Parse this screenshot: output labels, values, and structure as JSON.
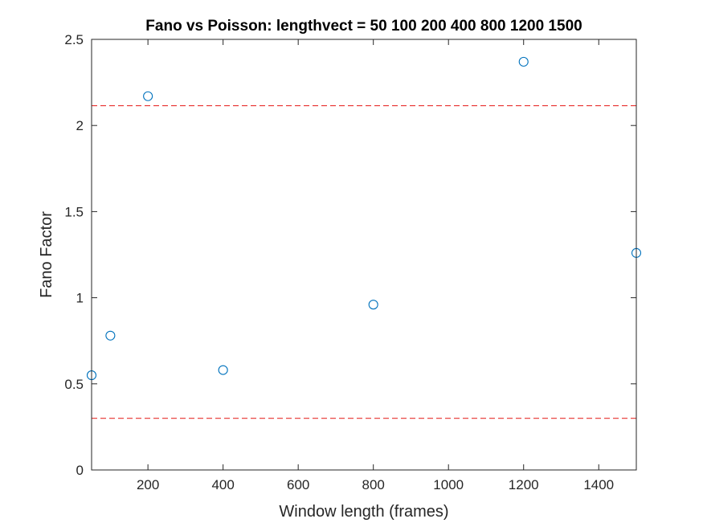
{
  "chart_data": {
    "type": "scatter",
    "title": "Fano vs Poisson: lengthvect = 50   100   200   400   800   1200  1500",
    "xlabel": "Window length (frames)",
    "ylabel": "Fano Factor",
    "xlim": [
      50,
      1500
    ],
    "ylim": [
      0,
      2.5
    ],
    "xticks": [
      200,
      400,
      600,
      800,
      1000,
      1200,
      1400
    ],
    "yticks": [
      0,
      0.5,
      1,
      1.5,
      2,
      2.5
    ],
    "xtick_labels": [
      "200",
      "400",
      "600",
      "800",
      "1000",
      "1200",
      "1400"
    ],
    "ytick_labels": [
      "0",
      "0.5",
      "1",
      "1.5",
      "2",
      "2.5"
    ],
    "series": [
      {
        "marker": "circle",
        "color": "#0072BD",
        "points": [
          {
            "x": 50,
            "y": 0.55
          },
          {
            "x": 100,
            "y": 0.78
          },
          {
            "x": 200,
            "y": 2.17
          },
          {
            "x": 400,
            "y": 0.58
          },
          {
            "x": 800,
            "y": 0.96
          },
          {
            "x": 1200,
            "y": 2.37
          },
          {
            "x": 1500,
            "y": 1.26
          }
        ]
      }
    ],
    "reference_lines": [
      {
        "y": 2.115,
        "style": "dashed",
        "color": "#E8302F"
      },
      {
        "y": 0.3,
        "style": "dashed",
        "color": "#E8302F"
      }
    ],
    "grid": false,
    "box": true
  }
}
